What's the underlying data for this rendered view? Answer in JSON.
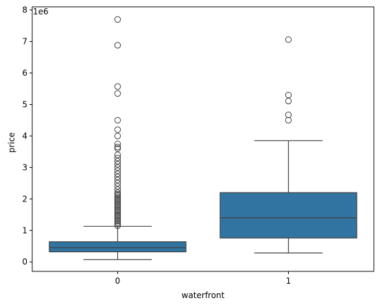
{
  "chart_data": {
    "type": "box",
    "title": "",
    "xlabel": "waterfront",
    "ylabel": "price",
    "offset_text": "1e6",
    "ylim": [
      -0.3,
      8.1
    ],
    "yticks": [
      0,
      1,
      2,
      3,
      4,
      5,
      6,
      7,
      8
    ],
    "ytick_labels": [
      "0",
      "1",
      "2",
      "3",
      "4",
      "5",
      "6",
      "7",
      "8"
    ],
    "categories": [
      "0",
      "1"
    ],
    "colors": {
      "box": "#3274a1",
      "edge": "#3f3f3f"
    },
    "boxes": [
      {
        "category": "0",
        "whisker_low": 0.075,
        "q1": 0.32,
        "median": 0.45,
        "q3": 0.64,
        "whisker_high": 1.13,
        "outliers": [
          1.15,
          1.2,
          1.25,
          1.3,
          1.35,
          1.4,
          1.45,
          1.5,
          1.55,
          1.6,
          1.65,
          1.7,
          1.75,
          1.8,
          1.85,
          1.9,
          1.95,
          2.0,
          2.05,
          2.1,
          2.15,
          2.2,
          2.3,
          2.4,
          2.5,
          2.6,
          2.7,
          2.8,
          2.9,
          3.0,
          3.1,
          3.2,
          3.3,
          3.4,
          3.6,
          3.65,
          3.75,
          4.0,
          4.2,
          4.5,
          5.35,
          5.57,
          6.88,
          7.7
        ]
      },
      {
        "category": "1",
        "whisker_low": 0.285,
        "q1": 0.76,
        "median": 1.4,
        "q3": 2.2,
        "whisker_high": 3.85,
        "outliers": [
          4.5,
          4.67,
          5.11,
          5.3,
          7.06
        ]
      }
    ]
  }
}
